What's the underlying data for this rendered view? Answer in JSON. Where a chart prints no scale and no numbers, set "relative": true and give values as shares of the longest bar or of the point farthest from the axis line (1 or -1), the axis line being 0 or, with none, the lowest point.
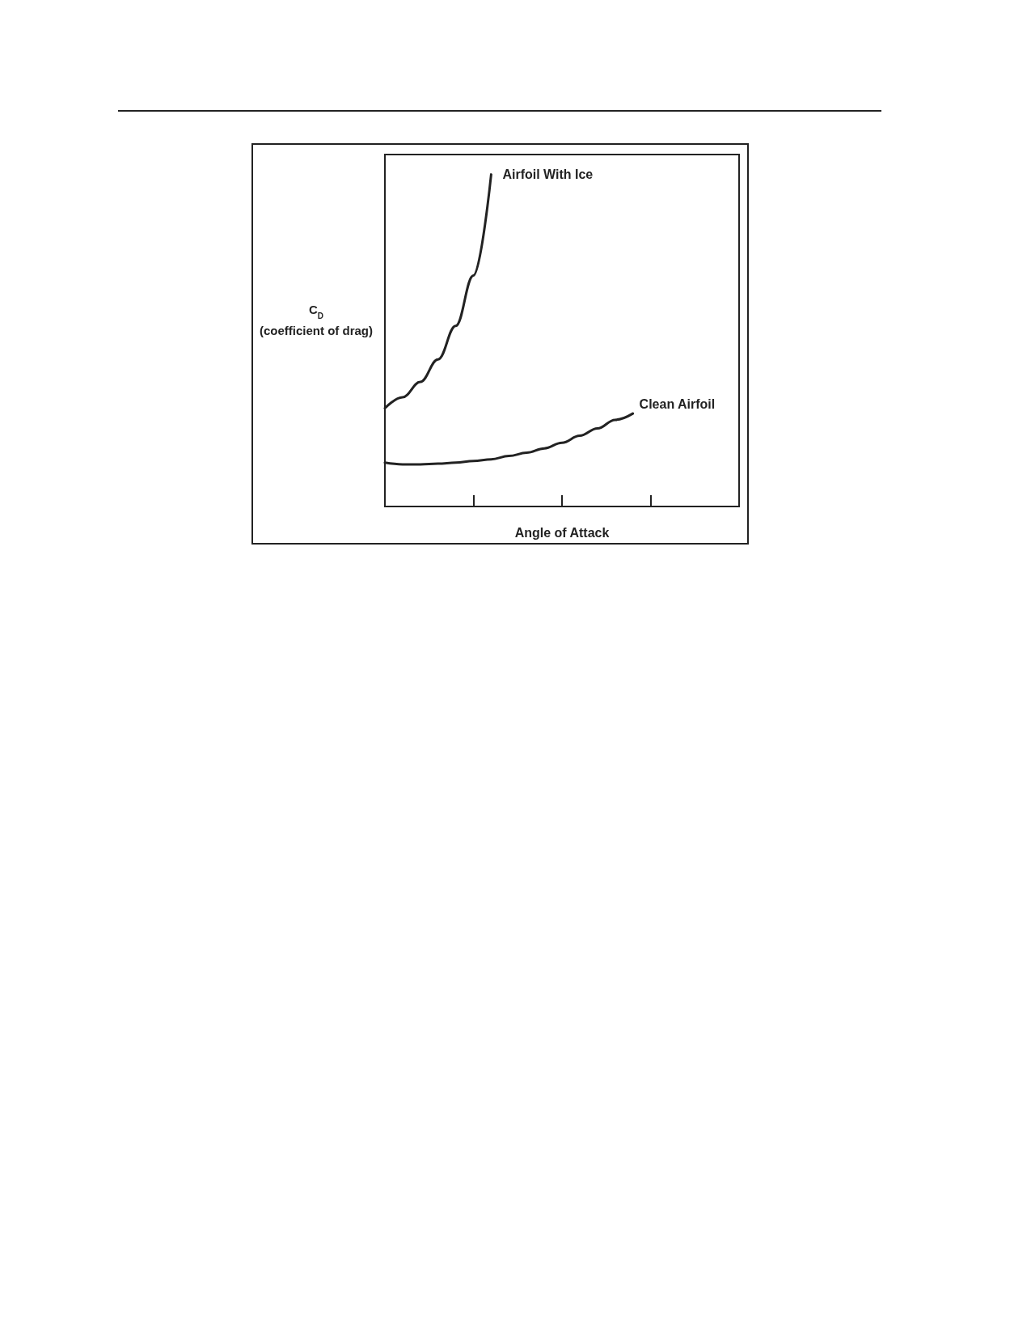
{
  "chart_data": {
    "type": "line",
    "relative": true,
    "xlabel": "Angle of Attack",
    "ylabel": "C$_{D}$\n(coefficient of drag)",
    "legend": false,
    "marker": "none",
    "line_style": "solid",
    "grid": false,
    "categories": [
      null,
      null,
      null,
      null,
      null,
      null,
      null,
      null,
      null,
      null,
      null,
      null,
      null,
      null,
      null,
      null,
      null,
      null,
      null,
      null,
      null
    ],
    "series": [
      {
        "name": "Airfoil With Ice",
        "color": "#222222",
        "values": [
          0.296,
          0.329,
          0.375,
          0.443,
          0.544,
          0.696,
          1.0,
          null,
          null,
          null,
          null,
          null,
          null,
          null,
          null,
          null,
          null,
          null,
          null,
          null,
          null
        ]
      },
      {
        "name": "Clean Airfoil",
        "color": "#222222",
        "values": [
          0.132,
          0.127,
          0.127,
          0.129,
          0.132,
          0.137,
          0.142,
          0.152,
          0.162,
          0.175,
          0.192,
          0.213,
          0.235,
          0.261,
          0.28,
          null,
          null,
          null,
          null,
          null,
          null
        ]
      }
    ]
  }
}
